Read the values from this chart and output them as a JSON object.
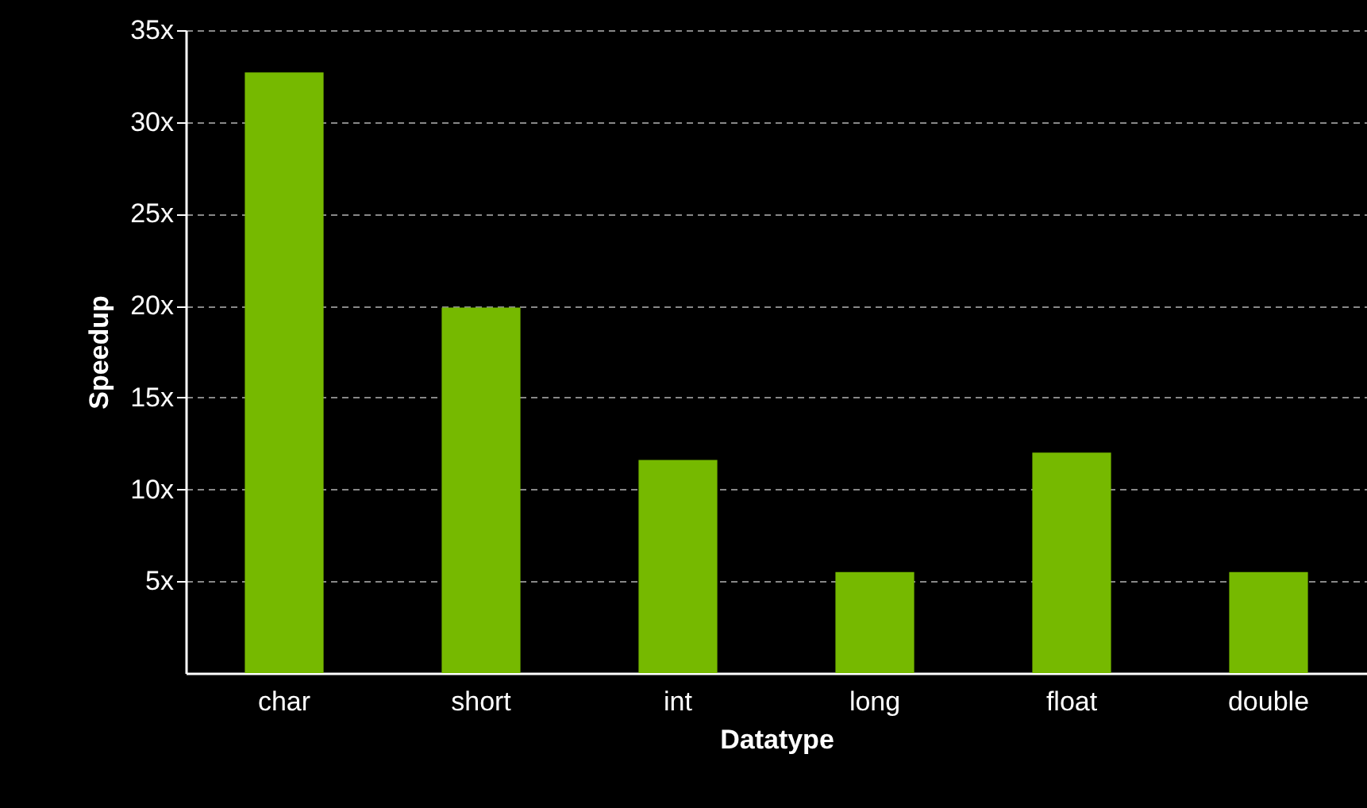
{
  "chart_data": {
    "type": "bar",
    "xlabel": "Datatype",
    "ylabel": "Speedup",
    "categories": [
      "char",
      "short",
      "int",
      "long",
      "float",
      "double"
    ],
    "values": [
      32.7,
      19.9,
      11.6,
      5.5,
      12.0,
      5.5
    ],
    "color": "#76b900",
    "ylim": [
      0,
      35
    ],
    "yticks": [
      {
        "value": 5,
        "label": "5x"
      },
      {
        "value": 10,
        "label": "10x"
      },
      {
        "value": 15,
        "label": "15x"
      },
      {
        "value": 20,
        "label": "20x"
      },
      {
        "value": 25,
        "label": "25x"
      },
      {
        "value": 30,
        "label": "30x"
      },
      {
        "value": 35,
        "label": "35x"
      }
    ],
    "grid": "y",
    "line_style": "dashed"
  }
}
